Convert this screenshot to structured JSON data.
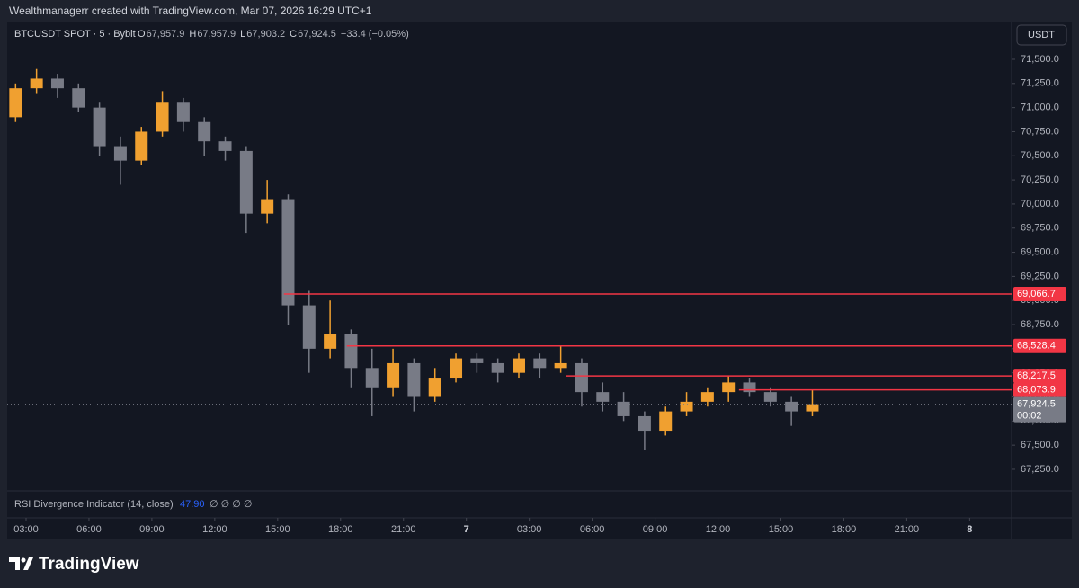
{
  "header": "Wealthmanagerr created with TradingView.com, Mar 07, 2026 16:29 UTC+1",
  "symbol": "BTCUSDT SPOT · 5 · Bybit",
  "ohlc": [
    {
      "key": "O",
      "value": "67,957.9"
    },
    {
      "key": "H",
      "value": "67,957.9"
    },
    {
      "key": "L",
      "value": "67,903.2"
    },
    {
      "key": "C",
      "value": "67,924.5"
    }
  ],
  "change": "−33.4 (−0.05%)",
  "currency": "USDT",
  "indicator": {
    "name": "RSI Divergence Indicator (14, close)",
    "value": "47.90",
    "flags": "∅ ∅ ∅ ∅"
  },
  "brand": "TradingView",
  "chart_data": {
    "type": "candlestick",
    "x": [
      2,
      3,
      4,
      5,
      6,
      7,
      8,
      9,
      10,
      11,
      12,
      13,
      14,
      15,
      16,
      17,
      18,
      19,
      20,
      21,
      22,
      23,
      24,
      25,
      26,
      27,
      28,
      29,
      30,
      31,
      32,
      33,
      34,
      35,
      36,
      37,
      38,
      39,
      40
    ],
    "open": [
      70900,
      71200,
      71300,
      71200,
      71000,
      70600,
      70450,
      70750,
      71050,
      70850,
      70650,
      70550,
      69900,
      70050,
      68950,
      68500,
      68650,
      68300,
      68100,
      68350,
      68000,
      68200,
      68400,
      68350,
      68250,
      68400,
      68300,
      68350,
      68050,
      67950,
      67800,
      67650,
      67850,
      67950,
      68050,
      68150,
      68050,
      67950,
      67850
    ],
    "high": [
      71250,
      71400,
      71350,
      71250,
      71050,
      70700,
      70800,
      71170,
      71100,
      70900,
      70700,
      70600,
      70250,
      70100,
      69100,
      69000,
      68700,
      68500,
      68500,
      68400,
      68300,
      68450,
      68450,
      68400,
      68450,
      68450,
      68530,
      68400,
      68150,
      68050,
      67850,
      67900,
      68050,
      68100,
      68220,
      68200,
      68100,
      68000,
      68075
    ],
    "low": [
      70850,
      71150,
      71100,
      70950,
      70500,
      70200,
      70400,
      70700,
      70750,
      70500,
      70450,
      69700,
      69800,
      68750,
      68250,
      68400,
      68100,
      67800,
      68000,
      67850,
      67950,
      68150,
      68250,
      68150,
      68200,
      68200,
      68250,
      67900,
      67850,
      67750,
      67450,
      67600,
      67800,
      67900,
      67950,
      68000,
      67900,
      67700,
      67800
    ],
    "close": [
      71200,
      71300,
      71200,
      71000,
      70600,
      70450,
      70750,
      71050,
      70850,
      70650,
      70550,
      69900,
      70050,
      68950,
      68500,
      68650,
      68300,
      68100,
      68350,
      68000,
      68200,
      68400,
      68350,
      68250,
      68400,
      68300,
      68350,
      68050,
      67950,
      67800,
      67650,
      67850,
      67950,
      68050,
      68150,
      68050,
      67950,
      67850,
      67924.5
    ],
    "up_color": "#f0a030",
    "down_color": "#787b86",
    "xlim": [
      2.1,
      50
    ],
    "ylim": [
      67026,
      71882
    ],
    "xticks": [
      {
        "value": 3,
        "label": "03:00"
      },
      {
        "value": 6,
        "label": "06:00"
      },
      {
        "value": 9,
        "label": "09:00"
      },
      {
        "value": 12,
        "label": "12:00"
      },
      {
        "value": 15,
        "label": "15:00"
      },
      {
        "value": 18,
        "label": "18:00"
      },
      {
        "value": 21,
        "label": "21:00"
      },
      {
        "value": 24,
        "label": "7"
      },
      {
        "value": 27,
        "label": "03:00"
      },
      {
        "value": 30,
        "label": "06:00"
      },
      {
        "value": 33,
        "label": "09:00"
      },
      {
        "value": 36,
        "label": "12:00"
      },
      {
        "value": 39,
        "label": "15:00"
      },
      {
        "value": 42,
        "label": "18:00"
      },
      {
        "value": 45,
        "label": "21:00"
      },
      {
        "value": 48,
        "label": "8"
      }
    ],
    "yticks": [
      {
        "value": 67250,
        "label": "67,250.0"
      },
      {
        "value": 67500,
        "label": "67,500.0"
      },
      {
        "value": 67750,
        "label": "67,750.0"
      },
      {
        "value": 68000,
        "label": "68,000.0"
      },
      {
        "value": 68250,
        "label": "68,250.0"
      },
      {
        "value": 68500,
        "label": "68,500.0"
      },
      {
        "value": 68750,
        "label": "68,750.0"
      },
      {
        "value": 69000,
        "label": "69,000.0"
      },
      {
        "value": 69250,
        "label": "69,250.0"
      },
      {
        "value": 69500,
        "label": "69,500.0"
      },
      {
        "value": 69750,
        "label": "69,750.0"
      },
      {
        "value": 70000,
        "label": "70,000.0"
      },
      {
        "value": 70250,
        "label": "70,250.0"
      },
      {
        "value": 70500,
        "label": "70,500.0"
      },
      {
        "value": 70750,
        "label": "70,750.0"
      },
      {
        "value": 71000,
        "label": "71,000.0"
      },
      {
        "value": 71250,
        "label": "71,250.0"
      },
      {
        "value": 71500,
        "label": "71,500.0"
      }
    ],
    "levels": [
      {
        "value": 69066.7,
        "label": "69,066.7",
        "start": 15.3
      },
      {
        "value": 68528.4,
        "label": "68,528.4",
        "start": 18.3
      },
      {
        "value": 68217.5,
        "label": "68,217.5",
        "start": 28.75
      },
      {
        "value": 68073.9,
        "label": "68,073.9",
        "start": 37
      }
    ],
    "level_color": "#f23645",
    "last": {
      "value": 67924.5,
      "label": "67,924.5",
      "countdown": "00:02"
    }
  }
}
